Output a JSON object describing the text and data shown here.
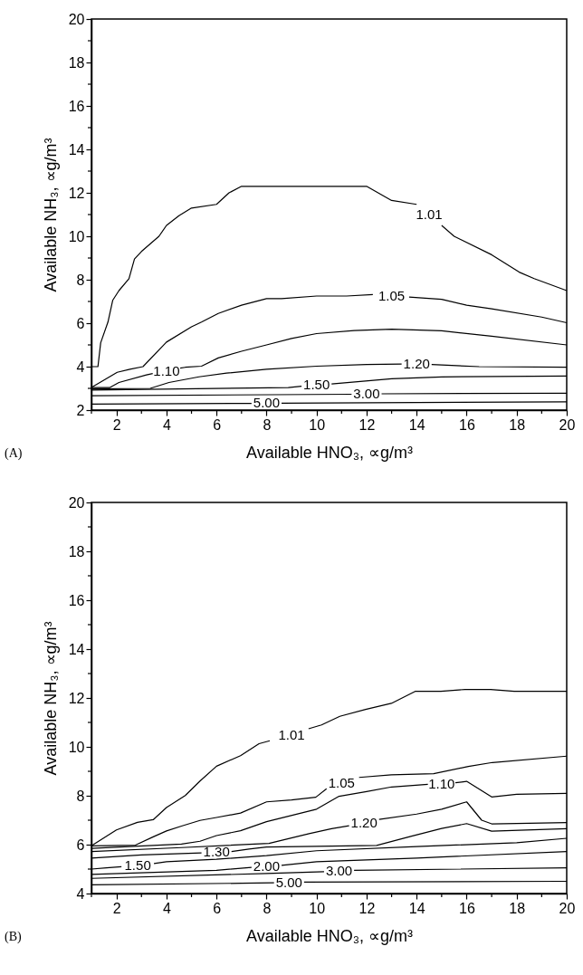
{
  "chart_data": [
    {
      "type": "line",
      "xlabel": "Available HNO₃, ∝g/m³",
      "ylabel": "Available NH₃, ∝g/m³",
      "xlim": [
        1,
        20
      ],
      "ylim": [
        2,
        20
      ],
      "xticks": [
        {
          "value": 1,
          "label": null
        },
        2,
        {
          "value": 3,
          "label": null
        },
        4,
        {
          "value": 5,
          "label": null
        },
        6,
        {
          "value": 7,
          "label": null
        },
        8,
        {
          "value": 9,
          "label": null
        },
        10,
        {
          "value": 11,
          "label": null
        },
        12,
        {
          "value": 13,
          "label": null
        },
        14,
        {
          "value": 15,
          "label": null
        },
        16,
        {
          "value": 17,
          "label": null
        },
        18,
        {
          "value": 19,
          "label": null
        },
        20
      ],
      "yticks": [
        2,
        {
          "value": 3,
          "label": null
        },
        4,
        {
          "value": 5,
          "label": null
        },
        6,
        {
          "value": 7,
          "label": null
        },
        8,
        {
          "value": 9,
          "label": null
        },
        10,
        {
          "value": 11,
          "label": null
        },
        12,
        {
          "value": 13,
          "label": null
        },
        14,
        {
          "value": 15,
          "label": null
        },
        16,
        {
          "value": 17,
          "label": null
        },
        18,
        {
          "value": 19,
          "label": null
        },
        20
      ],
      "series": [
        {
          "name": "1.01",
          "color": "#000000",
          "x": [
            1,
            1.26,
            1.37,
            1.66,
            1.85,
            2.1,
            2.5,
            2.72,
            3.0,
            3.7,
            4.0,
            4.5,
            5.0,
            6.0,
            6.5,
            7.0,
            12.0,
            13.0,
            14.0,
            14.5,
            15.0,
            15.5,
            17.0,
            18.1,
            18.7,
            20
          ],
          "values": [
            4.0,
            4.0,
            5.1,
            6.05,
            7.05,
            7.5,
            8.05,
            8.95,
            9.3,
            10.0,
            10.5,
            10.95,
            11.3,
            11.47,
            12.0,
            12.3,
            12.3,
            11.65,
            11.47,
            null,
            10.5,
            10.0,
            9.15,
            8.35,
            8.05,
            7.5
          ]
        },
        {
          "name": "1.05",
          "color": "#000000",
          "x": [
            1,
            2.03,
            2.54,
            3.06,
            4.0,
            5.0,
            5.4,
            6.07,
            7.0,
            8.0,
            8.6,
            10.0,
            11.2,
            12.25,
            13.0,
            13.7,
            15.0,
            16.0,
            17.0,
            19.0,
            20
          ],
          "values": [
            3.04,
            3.74,
            3.88,
            4.0,
            5.13,
            5.83,
            6.05,
            6.45,
            6.83,
            7.13,
            7.13,
            7.25,
            7.25,
            7.32,
            null,
            7.2,
            7.1,
            6.83,
            6.66,
            6.28,
            6.02
          ]
        },
        {
          "name": "1.10",
          "color": "#000000",
          "x": [
            1,
            1.74,
            2.1,
            3.2,
            3.45,
            4.0,
            4.55,
            4.75,
            5.4,
            6.07,
            7.0,
            8.0,
            9.0,
            10.0,
            11.5,
            13.0,
            15.0,
            17.0,
            20
          ],
          "values": [
            3.04,
            3.04,
            3.27,
            3.62,
            3.68,
            null,
            3.93,
            3.97,
            4.02,
            4.4,
            4.71,
            5.0,
            5.3,
            5.52,
            5.66,
            5.72,
            5.65,
            5.4,
            5.0
          ]
        },
        {
          "name": "1.20",
          "color": "#000000",
          "x": [
            1,
            3.35,
            4.1,
            5.3,
            6.4,
            8.0,
            10.0,
            12.0,
            13.4,
            14.0,
            14.6,
            16.5,
            20
          ],
          "values": [
            2.97,
            3.0,
            3.27,
            3.53,
            3.7,
            3.88,
            4.02,
            4.1,
            4.12,
            null,
            4.1,
            4.0,
            3.97
          ]
        },
        {
          "name": "1.50",
          "color": "#000000",
          "x": [
            1,
            8.87,
            9.4,
            10.0,
            10.6,
            13.0,
            15.0,
            20
          ],
          "values": [
            2.92,
            3.04,
            3.1,
            null,
            3.2,
            3.44,
            3.53,
            3.57
          ]
        },
        {
          "name": "3.00",
          "color": "#000000",
          "x": [
            1,
            11.4,
            12.0,
            12.6,
            20
          ],
          "values": [
            2.66,
            2.73,
            null,
            2.75,
            2.78
          ]
        },
        {
          "name": "5.00",
          "color": "#000000",
          "x": [
            1,
            7.4,
            8.0,
            8.6,
            20
          ],
          "values": [
            2.28,
            2.31,
            null,
            2.32,
            2.38
          ]
        }
      ],
      "annotations": [
        "(A)"
      ]
    },
    {
      "type": "line",
      "xlabel": "Available HNO₃, ∝g/m³",
      "ylabel": "Available NH₃, ∝g/m³",
      "xlim": [
        1,
        20
      ],
      "ylim": [
        4,
        20
      ],
      "xticks": [
        {
          "value": 1,
          "label": null
        },
        2,
        {
          "value": 3,
          "label": null
        },
        4,
        {
          "value": 5,
          "label": null
        },
        6,
        {
          "value": 7,
          "label": null
        },
        8,
        {
          "value": 9,
          "label": null
        },
        10,
        {
          "value": 11,
          "label": null
        },
        12,
        {
          "value": 13,
          "label": null
        },
        14,
        {
          "value": 15,
          "label": null
        },
        16,
        {
          "value": 17,
          "label": null
        },
        18,
        {
          "value": 19,
          "label": null
        },
        20
      ],
      "yticks": [
        4,
        {
          "value": 5,
          "label": null
        },
        6,
        {
          "value": 7,
          "label": null
        },
        8,
        {
          "value": 9,
          "label": null
        },
        10,
        {
          "value": 11,
          "label": null
        },
        12,
        {
          "value": 13,
          "label": null
        },
        14,
        {
          "value": 15,
          "label": null
        },
        16,
        {
          "value": 17,
          "label": null
        },
        18,
        {
          "value": 19,
          "label": null
        },
        20
      ],
      "series": [
        {
          "name": "1.01",
          "color": "#000000",
          "x": [
            1,
            2.0,
            2.84,
            3.47,
            4.0,
            4.75,
            5.34,
            6.0,
            6.96,
            7.7,
            8.13,
            9.0,
            9.68,
            10.2,
            10.93,
            11.96,
            12.99,
            13.94,
            14.97,
            15.93,
            16.96,
            17.9,
            20
          ],
          "values": [
            5.95,
            6.6,
            6.91,
            7.02,
            7.52,
            8.01,
            8.6,
            9.21,
            9.64,
            10.13,
            10.25,
            null,
            10.74,
            10.9,
            11.25,
            11.53,
            11.78,
            12.27,
            12.27,
            12.35,
            12.35,
            12.27,
            12.27
          ]
        },
        {
          "name": "1.05",
          "color": "#000000",
          "x": [
            1,
            2.76,
            3.43,
            4.0,
            4.6,
            5.34,
            6.0,
            6.96,
            8.0,
            9.0,
            9.97,
            10.4,
            11.0,
            11.7,
            12.99,
            14.68,
            16.07,
            17.03,
            20
          ],
          "values": [
            5.95,
            5.98,
            6.3,
            6.56,
            6.76,
            6.99,
            7.11,
            7.29,
            7.75,
            7.83,
            7.94,
            8.29,
            null,
            8.75,
            8.86,
            8.9,
            9.2,
            9.36,
            9.62
          ]
        },
        {
          "name": "1.10",
          "color": "#000000",
          "x": [
            1,
            4.6,
            5.34,
            6.0,
            6.96,
            8.0,
            10.0,
            10.9,
            12.0,
            13.0,
            14.45,
            15.0,
            15.55,
            16.0,
            17.0,
            18.0,
            20
          ],
          "values": [
            5.85,
            6.02,
            6.14,
            6.37,
            6.57,
            6.94,
            7.45,
            7.98,
            8.17,
            8.36,
            8.47,
            null,
            8.53,
            8.59,
            7.95,
            8.06,
            8.1
          ]
        },
        {
          "name": "1.20",
          "color": "#000000",
          "x": [
            1,
            4.6,
            8.1,
            9.7,
            10.6,
            11.3,
            11.9,
            12.5,
            14.0,
            15.0,
            16.0,
            16.6,
            17.0,
            20
          ],
          "values": [
            5.72,
            5.88,
            6.05,
            6.45,
            6.65,
            6.77,
            null,
            7.03,
            7.25,
            7.45,
            7.75,
            7.0,
            6.85,
            6.9
          ]
        },
        {
          "name": "1.30",
          "color": "#000000",
          "x": [
            1,
            3.0,
            5.4,
            6.0,
            6.6,
            7.3,
            8.0,
            10.0,
            12.4,
            13.8,
            15.0,
            16.0,
            17.0,
            20
          ],
          "values": [
            5.45,
            5.58,
            5.66,
            null,
            5.72,
            5.82,
            5.9,
            5.93,
            5.97,
            6.35,
            6.66,
            6.86,
            6.55,
            6.65
          ]
        },
        {
          "name": "1.50",
          "color": "#000000",
          "x": [
            1,
            1.6,
            2.2,
            2.85,
            3.5,
            4.0,
            6.0,
            8.0,
            10.0,
            14.0,
            18.0,
            20
          ],
          "values": [
            5.0,
            5.05,
            5.1,
            null,
            5.23,
            5.3,
            5.4,
            5.55,
            5.75,
            5.92,
            6.08,
            6.26
          ]
        },
        {
          "name": "2.00",
          "color": "#000000",
          "x": [
            1,
            6.0,
            7.4,
            8.0,
            8.6,
            10.0,
            14.0,
            20
          ],
          "values": [
            4.78,
            4.95,
            5.07,
            null,
            5.15,
            5.3,
            5.45,
            5.72
          ]
        },
        {
          "name": "3.00",
          "color": "#000000",
          "x": [
            1,
            8.0,
            10.3,
            10.9,
            11.5,
            20
          ],
          "values": [
            4.62,
            4.82,
            4.89,
            null,
            4.95,
            5.05
          ]
        },
        {
          "name": "5.00",
          "color": "#000000",
          "x": [
            1,
            7.0,
            8.3,
            8.9,
            9.5,
            20
          ],
          "values": [
            4.36,
            4.42,
            4.44,
            null,
            4.47,
            4.5
          ]
        }
      ],
      "annotations": [
        "(B)"
      ]
    }
  ]
}
